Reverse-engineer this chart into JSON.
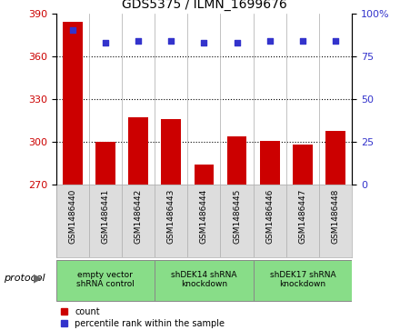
{
  "title": "GDS5375 / ILMN_1699676",
  "samples": [
    "GSM1486440",
    "GSM1486441",
    "GSM1486442",
    "GSM1486443",
    "GSM1486444",
    "GSM1486445",
    "GSM1486446",
    "GSM1486447",
    "GSM1486448"
  ],
  "counts": [
    384,
    300,
    317,
    316,
    284,
    304,
    301,
    298,
    308
  ],
  "percentiles": [
    90,
    83,
    84,
    84,
    83,
    83,
    84,
    84,
    84
  ],
  "ylim_left": [
    270,
    390
  ],
  "yticks_left": [
    270,
    300,
    330,
    360,
    390
  ],
  "ylim_right": [
    0,
    100
  ],
  "yticks_right": [
    0,
    25,
    50,
    75,
    100
  ],
  "bar_color": "#cc0000",
  "dot_color": "#3333cc",
  "grid_color": "#000000",
  "protocol_groups": [
    {
      "label": "empty vector\nshRNA control",
      "start": 0,
      "end": 3,
      "color": "#88dd88"
    },
    {
      "label": "shDEK14 shRNA\nknockdown",
      "start": 3,
      "end": 6,
      "color": "#88dd88"
    },
    {
      "label": "shDEK17 shRNA\nknockdown",
      "start": 6,
      "end": 9,
      "color": "#88dd88"
    }
  ],
  "legend_count_label": "count",
  "legend_percentile_label": "percentile rank within the sample",
  "protocol_label": "protocol",
  "sample_bg_color": "#dddddd",
  "plot_bg_color": "#ffffff",
  "tick_label_color_left": "#cc0000",
  "tick_label_color_right": "#3333cc"
}
